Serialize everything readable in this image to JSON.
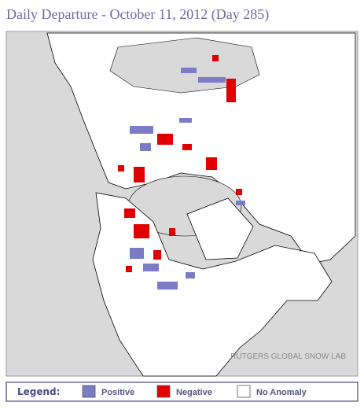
{
  "title": "Daily Departure - October 11, 2012 (Day 285)",
  "credit": "RUTGERS GLOBAL SNOW LAB",
  "legend": {
    "title": "Legend:",
    "items": [
      {
        "label": "Positive",
        "color": "#7b7bc6"
      },
      {
        "label": "Negative",
        "color": "#e00000"
      },
      {
        "label": "No Anomaly",
        "color": "#ffffff"
      }
    ]
  }
}
